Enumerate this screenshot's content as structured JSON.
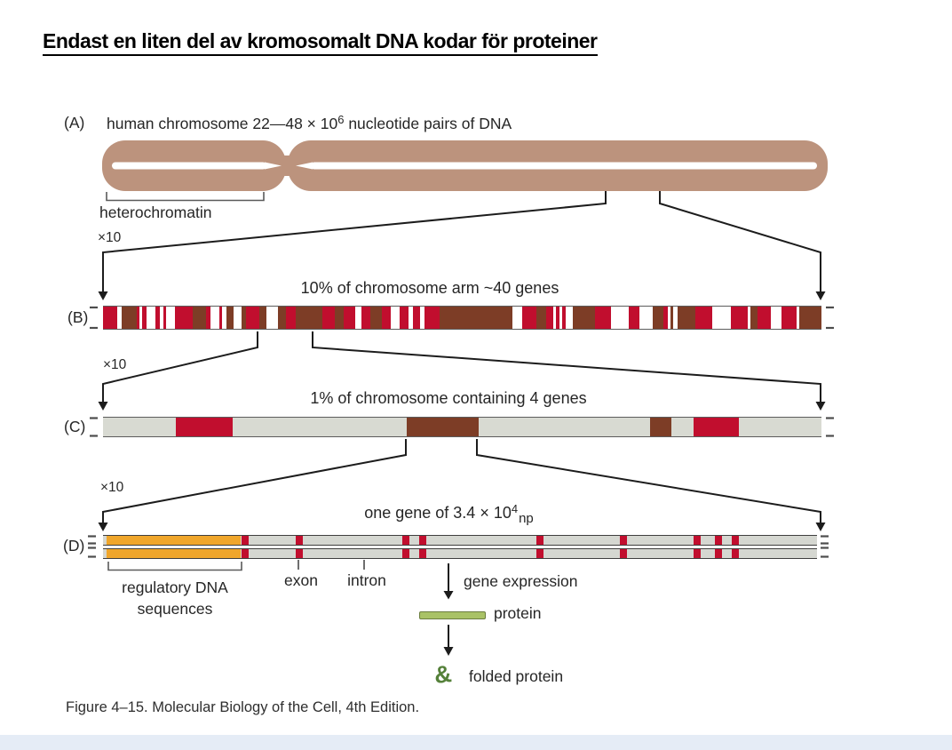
{
  "page_title": "Endast en liten del av kromosomalt DNA kodar för proteiner",
  "colors": {
    "tan": "#bc937d",
    "red": "#c10e2e",
    "brown": "#7d3d26",
    "grayc": "#d8dad2",
    "grayd": "#d5d7d1",
    "orange": "#f0a62b",
    "greenfill": "#a9c266",
    "greenborder": "#6b7d3e",
    "greenicon": "#55813a",
    "line": "#1c1c1c"
  },
  "zoom_label": "×10",
  "panelA": {
    "label": "(A)",
    "caption_pre": "human chromosome 22—48 × 10",
    "caption_sup": "6",
    "caption_post": " nucleotide pairs of DNA",
    "heterochromatin_label": "heterochromatin"
  },
  "panelB": {
    "label": "(B)",
    "caption": "10% of chromosome arm ~40 genes",
    "segments": [
      {
        "l": 0,
        "w": 16,
        "c": "red"
      },
      {
        "l": 21,
        "w": 17,
        "c": "brown"
      },
      {
        "l": 38,
        "w": 3,
        "c": "red"
      },
      {
        "l": 44,
        "w": 5,
        "c": "red"
      },
      {
        "l": 59,
        "w": 5,
        "c": "red"
      },
      {
        "l": 68,
        "w": 3,
        "c": "red"
      },
      {
        "l": 81,
        "w": 20,
        "c": "red"
      },
      {
        "l": 101,
        "w": 15,
        "c": "brown"
      },
      {
        "l": 116,
        "w": 5,
        "c": "red"
      },
      {
        "l": 131,
        "w": 3,
        "c": "red"
      },
      {
        "l": 139,
        "w": 8,
        "c": "brown"
      },
      {
        "l": 156,
        "w": 5,
        "c": "brown"
      },
      {
        "l": 161,
        "w": 15,
        "c": "red"
      },
      {
        "l": 176,
        "w": 8,
        "c": "brown"
      },
      {
        "l": 197,
        "w": 9,
        "c": "brown"
      },
      {
        "l": 206,
        "w": 11,
        "c": "red"
      },
      {
        "l": 217,
        "w": 30,
        "c": "brown"
      },
      {
        "l": 247,
        "w": 14,
        "c": "red"
      },
      {
        "l": 261,
        "w": 10,
        "c": "brown"
      },
      {
        "l": 271,
        "w": 13,
        "c": "red"
      },
      {
        "l": 291,
        "w": 10,
        "c": "red"
      },
      {
        "l": 301,
        "w": 13,
        "c": "brown"
      },
      {
        "l": 314,
        "w": 10,
        "c": "red"
      },
      {
        "l": 334,
        "w": 10,
        "c": "red"
      },
      {
        "l": 349,
        "w": 8,
        "c": "red"
      },
      {
        "l": 362,
        "w": 17,
        "c": "red"
      },
      {
        "l": 379,
        "w": 82,
        "c": "brown"
      },
      {
        "l": 472,
        "w": 16,
        "c": "red"
      },
      {
        "l": 488,
        "w": 11,
        "c": "brown"
      },
      {
        "l": 499,
        "w": 8,
        "c": "red"
      },
      {
        "l": 510,
        "w": 4,
        "c": "red"
      },
      {
        "l": 517,
        "w": 4,
        "c": "red"
      },
      {
        "l": 529,
        "w": 25,
        "c": "brown"
      },
      {
        "l": 554,
        "w": 18,
        "c": "red"
      },
      {
        "l": 592,
        "w": 12,
        "c": "red"
      },
      {
        "l": 619,
        "w": 12,
        "c": "brown"
      },
      {
        "l": 631,
        "w": 5,
        "c": "red"
      },
      {
        "l": 639,
        "w": 3,
        "c": "brown"
      },
      {
        "l": 647,
        "w": 20,
        "c": "brown"
      },
      {
        "l": 667,
        "w": 19,
        "c": "red"
      },
      {
        "l": 707,
        "w": 19,
        "c": "red"
      },
      {
        "l": 729,
        "w": 8,
        "c": "brown"
      },
      {
        "l": 737,
        "w": 15,
        "c": "red"
      },
      {
        "l": 764,
        "w": 17,
        "c": "red"
      },
      {
        "l": 784,
        "w": 25,
        "c": "brown"
      }
    ]
  },
  "panelC": {
    "label": "(C)",
    "caption": "1% of chromosome containing 4 genes",
    "segments": [
      {
        "l": 82,
        "w": 64,
        "c": "red"
      },
      {
        "l": 342,
        "w": 81,
        "c": "brown"
      },
      {
        "l": 616,
        "w": 24,
        "c": "brown"
      },
      {
        "l": 665,
        "w": 51,
        "c": "red"
      }
    ]
  },
  "panelD": {
    "label": "(D)",
    "caption_pre": "one gene of 3.4 × 10",
    "caption_sup": "4",
    "caption_sub": "np",
    "features": [
      {
        "l": 4,
        "w": 151,
        "c": "orange"
      },
      {
        "l": 156,
        "w": 8,
        "c": "tick"
      },
      {
        "l": 217,
        "w": 8,
        "c": "tick"
      },
      {
        "l": 337,
        "w": 8,
        "c": "tick"
      },
      {
        "l": 356,
        "w": 8,
        "c": "tick"
      },
      {
        "l": 488,
        "w": 8,
        "c": "tick"
      },
      {
        "l": 582,
        "w": 8,
        "c": "tick"
      },
      {
        "l": 665,
        "w": 8,
        "c": "tick"
      },
      {
        "l": 689,
        "w": 8,
        "c": "tick"
      },
      {
        "l": 708,
        "w": 8,
        "c": "tick"
      }
    ],
    "regulatory_label_line1": "regulatory DNA",
    "regulatory_label_line2": "sequences",
    "exon_label": "exon",
    "intron_label": "intron",
    "gene_expression_label": "gene expression",
    "protein_label": "protein",
    "folded_protein_label": "folded protein",
    "folded_protein_glyph": "&"
  },
  "figure_caption": "Figure 4–15. Molecular Biology of the Cell, 4th Edition."
}
